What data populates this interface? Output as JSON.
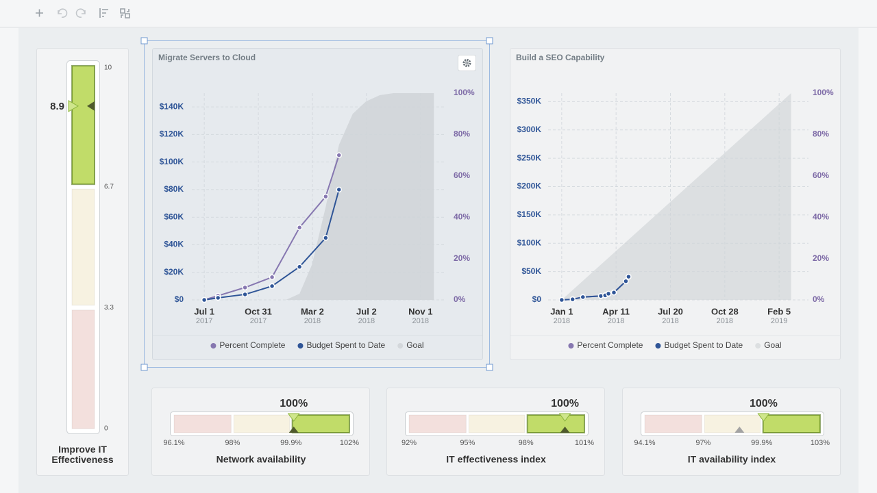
{
  "chart_data": [
    {
      "type": "gauge",
      "title": "Improve IT Effectiveness",
      "value": 8.9,
      "target": 8.9,
      "ticks": [
        0,
        3.3,
        6.7,
        10
      ],
      "band_colors": [
        "#f3e0dd",
        "#f7f2e1",
        "#c1dc69"
      ]
    },
    {
      "type": "line",
      "title": "Migrate Servers to Cloud",
      "grid": true,
      "xlim": [
        "2017-06-03",
        "2018-12-27"
      ],
      "xticks": [
        {
          "value": "2017-07-01",
          "label": "Jul 1",
          "sublabel": "2017"
        },
        {
          "value": "2017-10-31",
          "label": "Oct 31",
          "sublabel": "2017"
        },
        {
          "value": "2018-03-02",
          "label": "Mar 2",
          "sublabel": "2018"
        },
        {
          "value": "2018-07-02",
          "label": "Jul 2",
          "sublabel": "2018"
        },
        {
          "value": "2018-11-01",
          "label": "Nov 1",
          "sublabel": "2018"
        }
      ],
      "ylim": [
        0,
        150000
      ],
      "yticks": [
        {
          "value": 0,
          "label": "$0"
        },
        {
          "value": 20000,
          "label": "$20K"
        },
        {
          "value": 40000,
          "label": "$40K"
        },
        {
          "value": 60000,
          "label": "$60K"
        },
        {
          "value": 80000,
          "label": "$80K"
        },
        {
          "value": 100000,
          "label": "$100K"
        },
        {
          "value": 120000,
          "label": "$120K"
        },
        {
          "value": 140000,
          "label": "$140K"
        }
      ],
      "y2lim": [
        0,
        100
      ],
      "y2ticks": [
        {
          "value": 0,
          "label": "0%"
        },
        {
          "value": 20,
          "label": "20%"
        },
        {
          "value": 40,
          "label": "40%"
        },
        {
          "value": 60,
          "label": "60%"
        },
        {
          "value": 80,
          "label": "80%"
        },
        {
          "value": 100,
          "label": "100%"
        }
      ],
      "series": [
        {
          "name": "Percent Complete",
          "color": "#8677b0",
          "axis": "y2",
          "x": [
            "2017-07-01",
            "2017-08-01",
            "2017-10-01",
            "2017-12-01",
            "2018-02-01",
            "2018-04-01",
            "2018-05-01"
          ],
          "values": [
            0,
            2,
            6,
            11,
            35,
            50,
            70
          ]
        },
        {
          "name": "Budget Spent to Date",
          "color": "#2f5597",
          "axis": "y",
          "x": [
            "2017-07-01",
            "2017-08-01",
            "2017-10-01",
            "2017-12-01",
            "2018-02-01",
            "2018-04-01",
            "2018-05-01"
          ],
          "values": [
            0,
            1500,
            4000,
            10000,
            24000,
            45000,
            80000
          ]
        },
        {
          "name": "Goal",
          "kind": "area",
          "color": "#d3d7db",
          "axis": "y2",
          "x": [
            "2017-07-01",
            "2018-01-01",
            "2018-02-01",
            "2018-03-01",
            "2018-04-01",
            "2018-05-01",
            "2018-06-01",
            "2018-07-01",
            "2018-08-01",
            "2018-09-01",
            "2018-12-01"
          ],
          "values": [
            0,
            0,
            3,
            17,
            45,
            75,
            90,
            96,
            99,
            100,
            100
          ]
        }
      ]
    },
    {
      "type": "line",
      "title": "Build a SEO Capability",
      "grid": true,
      "xlim": [
        "2017-12-07",
        "2019-03-31"
      ],
      "xticks": [
        {
          "value": "2018-01-01",
          "label": "Jan 1",
          "sublabel": "2018"
        },
        {
          "value": "2018-04-11",
          "label": "Apr 11",
          "sublabel": "2018"
        },
        {
          "value": "2018-07-20",
          "label": "Jul 20",
          "sublabel": "2018"
        },
        {
          "value": "2018-10-28",
          "label": "Oct 28",
          "sublabel": "2018"
        },
        {
          "value": "2019-02-05",
          "label": "Feb 5",
          "sublabel": "2019"
        }
      ],
      "ylim": [
        0,
        365000
      ],
      "yticks": [
        {
          "value": 0,
          "label": "$0"
        },
        {
          "value": 50000,
          "label": "$50K"
        },
        {
          "value": 100000,
          "label": "$100K"
        },
        {
          "value": 150000,
          "label": "$150K"
        },
        {
          "value": 200000,
          "label": "$200K"
        },
        {
          "value": 250000,
          "label": "$250K"
        },
        {
          "value": 300000,
          "label": "$300K"
        },
        {
          "value": 350000,
          "label": "$350K"
        }
      ],
      "y2lim": [
        0,
        100
      ],
      "y2ticks": [
        {
          "value": 0,
          "label": "0%"
        },
        {
          "value": 20,
          "label": "20%"
        },
        {
          "value": 40,
          "label": "40%"
        },
        {
          "value": 60,
          "label": "60%"
        },
        {
          "value": 80,
          "label": "80%"
        },
        {
          "value": 100,
          "label": "100%"
        }
      ],
      "series": [
        {
          "name": "Percent Complete",
          "color": "#8677b0",
          "axis": "y2",
          "x": [
            "2018-01-01",
            "2018-01-21",
            "2018-02-09",
            "2018-03-14",
            "2018-03-22",
            "2018-03-28",
            "2018-04-07",
            "2018-04-29",
            "2018-05-04"
          ],
          "values": [
            0,
            0.3,
            1.4,
            1.9,
            2.2,
            3,
            3.6,
            9,
            11.2
          ]
        },
        {
          "name": "Budget Spent to Date",
          "color": "#2f5597",
          "axis": "y",
          "x": [
            "2018-01-01",
            "2018-01-21",
            "2018-02-09",
            "2018-03-14",
            "2018-03-22",
            "2018-03-28",
            "2018-04-07",
            "2018-04-29",
            "2018-05-04"
          ],
          "values": [
            0,
            1000,
            5000,
            7000,
            8000,
            11000,
            13000,
            33000,
            41000
          ]
        },
        {
          "name": "Goal",
          "kind": "area",
          "color": "#dcdfe1",
          "axis": "y2",
          "x": [
            "2018-01-01",
            "2019-02-27"
          ],
          "values": [
            0,
            100
          ]
        }
      ]
    },
    {
      "type": "bullet",
      "title": "Network availability",
      "value": 100,
      "value_label": "100%",
      "target": 100,
      "ticks": [
        {
          "value": 96.1,
          "label": "96.1%"
        },
        {
          "value": 98,
          "label": "98%"
        },
        {
          "value": 99.9,
          "label": "99.9%"
        },
        {
          "value": 102,
          "label": "102%"
        }
      ],
      "band_colors": [
        "#f3e0dd",
        "#f7f2e1",
        "#c1dc69"
      ]
    },
    {
      "type": "bullet",
      "title": "IT effectiveness index",
      "value": 100,
      "value_label": "100%",
      "target": 100,
      "ticks": [
        {
          "value": 92,
          "label": "92%"
        },
        {
          "value": 95,
          "label": "95%"
        },
        {
          "value": 98,
          "label": "98%"
        },
        {
          "value": 101,
          "label": "101%"
        }
      ],
      "band_colors": [
        "#f3e0dd",
        "#f7f2e1",
        "#c1dc69"
      ]
    },
    {
      "type": "bullet",
      "title": "IT availability index",
      "value": 100,
      "value_label": "100%",
      "target": 98.8,
      "ticks": [
        {
          "value": 94.1,
          "label": "94.1%"
        },
        {
          "value": 97,
          "label": "97%"
        },
        {
          "value": 99.9,
          "label": "99.9%"
        },
        {
          "value": 103,
          "label": "103%"
        }
      ],
      "band_colors": [
        "#f3e0dd",
        "#f7f2e1",
        "#c1dc69"
      ]
    }
  ]
}
